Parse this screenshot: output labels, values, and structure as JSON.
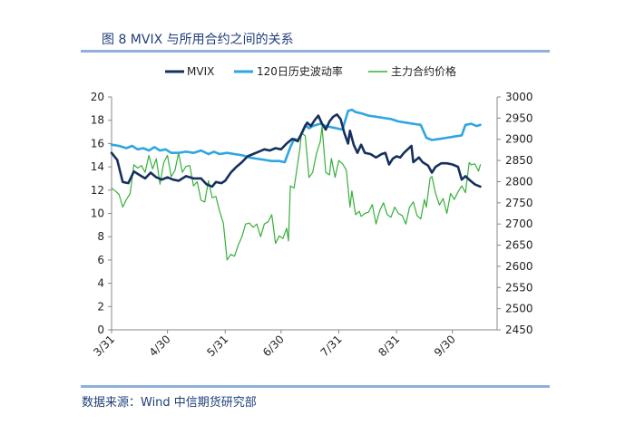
{
  "figure": {
    "title": "图 8   MVIX 与所用合约之间的关系",
    "source": "数据来源：Wind  中信期货研究部"
  },
  "colors": {
    "mvix": "#16305e",
    "hv120": "#2ea6e0",
    "price": "#36b03a",
    "axis": "#888888",
    "rule": "#8fb0d8"
  },
  "chart_data": {
    "type": "line",
    "grid": false,
    "legend_position": "top",
    "x_ticks": [
      "3/31",
      "4/30",
      "5/31",
      "6/30",
      "7/31",
      "8/31",
      "9/30"
    ],
    "x_tick_index": [
      0,
      30,
      61,
      91,
      122,
      153,
      183
    ],
    "x_range": [
      0,
      207
    ],
    "y_left": {
      "min": 0,
      "max": 20,
      "ticks": [
        0,
        2,
        4,
        6,
        8,
        10,
        12,
        14,
        16,
        18,
        20
      ]
    },
    "y_right": {
      "min": 2450,
      "max": 3000,
      "ticks": [
        2450,
        2500,
        2550,
        2600,
        2650,
        2700,
        2750,
        2800,
        2850,
        2900,
        2950,
        3000
      ]
    },
    "series": [
      {
        "name": "MVIX",
        "axis": "left",
        "color_key": "mvix",
        "width": 2.6,
        "points": [
          [
            0,
            15.2
          ],
          [
            3,
            14.6
          ],
          [
            6,
            12.7
          ],
          [
            9,
            12.6
          ],
          [
            12,
            13.6
          ],
          [
            15,
            13.3
          ],
          [
            18,
            13.0
          ],
          [
            21,
            13.5
          ],
          [
            24,
            13.1
          ],
          [
            27,
            12.9
          ],
          [
            30,
            13.1
          ],
          [
            33,
            12.9
          ],
          [
            36,
            12.8
          ],
          [
            40,
            13.2
          ],
          [
            44,
            13.0
          ],
          [
            48,
            13.0
          ],
          [
            51,
            12.5
          ],
          [
            54,
            12.3
          ],
          [
            56,
            12.7
          ],
          [
            59,
            12.6
          ],
          [
            61,
            12.8
          ],
          [
            64,
            13.5
          ],
          [
            67,
            14.0
          ],
          [
            70,
            14.4
          ],
          [
            73,
            14.9
          ],
          [
            76,
            15.1
          ],
          [
            79,
            15.3
          ],
          [
            82,
            15.5
          ],
          [
            85,
            15.4
          ],
          [
            88,
            15.6
          ],
          [
            91,
            15.5
          ],
          [
            94,
            16.0
          ],
          [
            97,
            16.4
          ],
          [
            100,
            16.2
          ],
          [
            103,
            17.2
          ],
          [
            105,
            17.8
          ],
          [
            107,
            17.5
          ],
          [
            109,
            18.0
          ],
          [
            111,
            18.4
          ],
          [
            113,
            17.7
          ],
          [
            115,
            17.2
          ],
          [
            117,
            17.9
          ],
          [
            119,
            18.3
          ],
          [
            121,
            18.5
          ],
          [
            123,
            18.1
          ],
          [
            125,
            16.9
          ],
          [
            127,
            16.0
          ],
          [
            128,
            17.1
          ],
          [
            130,
            15.9
          ],
          [
            132,
            15.2
          ],
          [
            134,
            15.9
          ],
          [
            136,
            15.2
          ],
          [
            139,
            15.1
          ],
          [
            142,
            14.8
          ],
          [
            145,
            15.1
          ],
          [
            147,
            15.2
          ],
          [
            149,
            14.2
          ],
          [
            151,
            14.7
          ],
          [
            153,
            14.9
          ],
          [
            155,
            14.8
          ],
          [
            157,
            15.2
          ],
          [
            159,
            15.5
          ],
          [
            161,
            15.8
          ],
          [
            162,
            14.4
          ],
          [
            165,
            14.8
          ],
          [
            167,
            14.4
          ],
          [
            170,
            14.1
          ],
          [
            172,
            13.5
          ],
          [
            174,
            14.0
          ],
          [
            177,
            14.3
          ],
          [
            180,
            14.3
          ],
          [
            183,
            14.2
          ],
          [
            186,
            14.0
          ],
          [
            188,
            12.9
          ],
          [
            190,
            13.2
          ],
          [
            192,
            12.9
          ],
          [
            195,
            12.5
          ],
          [
            198,
            12.3
          ]
        ]
      },
      {
        "name": "120日历史波动率",
        "axis": "left",
        "color_key": "hv120",
        "width": 2.6,
        "points": [
          [
            0,
            15.9
          ],
          [
            4,
            15.8
          ],
          [
            8,
            15.6
          ],
          [
            11,
            15.8
          ],
          [
            14,
            15.5
          ],
          [
            17,
            15.6
          ],
          [
            20,
            15.4
          ],
          [
            23,
            15.7
          ],
          [
            26,
            15.4
          ],
          [
            29,
            15.5
          ],
          [
            32,
            15.2
          ],
          [
            36,
            15.2
          ],
          [
            40,
            15.3
          ],
          [
            44,
            15.2
          ],
          [
            48,
            15.4
          ],
          [
            52,
            15.1
          ],
          [
            55,
            15.3
          ],
          [
            58,
            15.1
          ],
          [
            62,
            15.2
          ],
          [
            66,
            15.1
          ],
          [
            70,
            15.0
          ],
          [
            74,
            14.8
          ],
          [
            78,
            14.7
          ],
          [
            82,
            14.6
          ],
          [
            86,
            14.5
          ],
          [
            90,
            14.5
          ],
          [
            93,
            14.4
          ],
          [
            96,
            15.7
          ],
          [
            98,
            16.4
          ],
          [
            100,
            16.3
          ],
          [
            102,
            16.8
          ],
          [
            104,
            17.6
          ],
          [
            106,
            17.3
          ],
          [
            108,
            17.5
          ],
          [
            110,
            17.6
          ],
          [
            112,
            17.7
          ],
          [
            115,
            17.5
          ],
          [
            118,
            17.4
          ],
          [
            121,
            17.3
          ],
          [
            124,
            17.2
          ],
          [
            127,
            18.8
          ],
          [
            129,
            18.9
          ],
          [
            131,
            18.7
          ],
          [
            134,
            18.6
          ],
          [
            138,
            18.4
          ],
          [
            142,
            18.3
          ],
          [
            146,
            18.2
          ],
          [
            150,
            18.1
          ],
          [
            154,
            17.9
          ],
          [
            158,
            17.8
          ],
          [
            162,
            17.7
          ],
          [
            166,
            17.6
          ],
          [
            169,
            16.5
          ],
          [
            172,
            16.3
          ],
          [
            176,
            16.4
          ],
          [
            180,
            16.5
          ],
          [
            184,
            16.6
          ],
          [
            188,
            16.7
          ],
          [
            190,
            17.6
          ],
          [
            193,
            17.7
          ],
          [
            196,
            17.5
          ],
          [
            198,
            17.6
          ]
        ]
      },
      {
        "name": "主力合约价格",
        "axis": "right",
        "color_key": "price",
        "width": 1.2,
        "points": [
          [
            0,
            2785
          ],
          [
            2,
            2778
          ],
          [
            4,
            2770
          ],
          [
            6,
            2740
          ],
          [
            8,
            2758
          ],
          [
            10,
            2772
          ],
          [
            12,
            2840
          ],
          [
            14,
            2832
          ],
          [
            16,
            2838
          ],
          [
            18,
            2822
          ],
          [
            20,
            2862
          ],
          [
            22,
            2830
          ],
          [
            24,
            2854
          ],
          [
            26,
            2794
          ],
          [
            28,
            2845
          ],
          [
            30,
            2862
          ],
          [
            32,
            2812
          ],
          [
            34,
            2826
          ],
          [
            36,
            2868
          ],
          [
            38,
            2822
          ],
          [
            40,
            2836
          ],
          [
            42,
            2838
          ],
          [
            44,
            2790
          ],
          [
            46,
            2800
          ],
          [
            48,
            2756
          ],
          [
            50,
            2752
          ],
          [
            52,
            2802
          ],
          [
            54,
            2762
          ],
          [
            56,
            2765
          ],
          [
            58,
            2730
          ],
          [
            60,
            2702
          ],
          [
            61,
            2660
          ],
          [
            62,
            2615
          ],
          [
            64,
            2628
          ],
          [
            66,
            2624
          ],
          [
            68,
            2650
          ],
          [
            70,
            2670
          ],
          [
            72,
            2700
          ],
          [
            74,
            2702
          ],
          [
            76,
            2692
          ],
          [
            78,
            2700
          ],
          [
            80,
            2670
          ],
          [
            82,
            2700
          ],
          [
            84,
            2705
          ],
          [
            86,
            2722
          ],
          [
            88,
            2654
          ],
          [
            90,
            2672
          ],
          [
            92,
            2666
          ],
          [
            94,
            2690
          ],
          [
            95,
            2660
          ],
          [
            96,
            2790
          ],
          [
            98,
            2785
          ],
          [
            100,
            2845
          ],
          [
            101,
            2875
          ],
          [
            102,
            2915
          ],
          [
            104,
            2908
          ],
          [
            106,
            2810
          ],
          [
            108,
            2822
          ],
          [
            110,
            2866
          ],
          [
            112,
            2894
          ],
          [
            113,
            2930
          ],
          [
            115,
            2822
          ],
          [
            117,
            2816
          ],
          [
            118,
            2855
          ],
          [
            120,
            2810
          ],
          [
            121,
            2830
          ],
          [
            122,
            2850
          ],
          [
            124,
            2842
          ],
          [
            126,
            2828
          ],
          [
            128,
            2740
          ],
          [
            129,
            2778
          ],
          [
            131,
            2722
          ],
          [
            133,
            2730
          ],
          [
            134,
            2718
          ],
          [
            136,
            2725
          ],
          [
            138,
            2728
          ],
          [
            140,
            2746
          ],
          [
            142,
            2700
          ],
          [
            144,
            2732
          ],
          [
            146,
            2750
          ],
          [
            148,
            2722
          ],
          [
            150,
            2716
          ],
          [
            152,
            2740
          ],
          [
            154,
            2725
          ],
          [
            156,
            2720
          ],
          [
            158,
            2700
          ],
          [
            160,
            2740
          ],
          [
            162,
            2752
          ],
          [
            164,
            2720
          ],
          [
            166,
            2712
          ],
          [
            168,
            2758
          ],
          [
            169,
            2740
          ],
          [
            171,
            2808
          ],
          [
            172,
            2812
          ],
          [
            174,
            2772
          ],
          [
            176,
            2745
          ],
          [
            178,
            2760
          ],
          [
            180,
            2725
          ],
          [
            182,
            2772
          ],
          [
            184,
            2758
          ],
          [
            186,
            2776
          ],
          [
            188,
            2790
          ],
          [
            190,
            2774
          ],
          [
            192,
            2845
          ],
          [
            193,
            2840
          ],
          [
            195,
            2842
          ],
          [
            197,
            2825
          ],
          [
            198,
            2840
          ]
        ]
      }
    ]
  }
}
